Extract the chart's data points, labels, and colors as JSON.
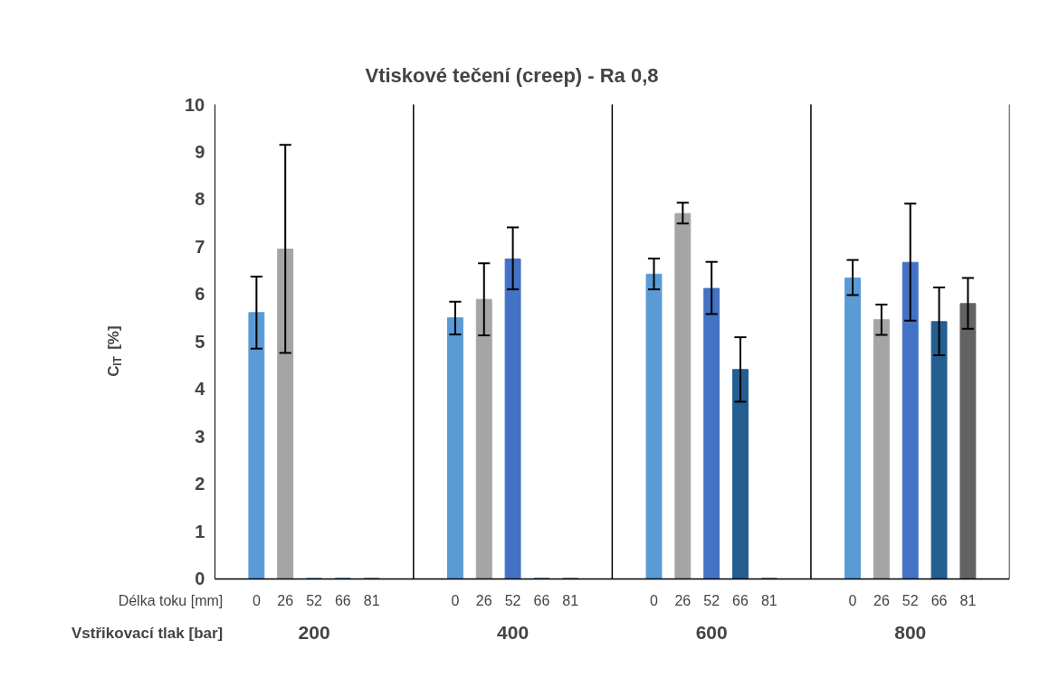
{
  "chart_data": {
    "type": "bar",
    "title": "Vtiskové tečení (creep) - Ra 0,8",
    "ylabel": "C$_{IT}$ [%]",
    "xlabel": "Vstřikovací tlak [bar]",
    "legend_title": "Délka toku [mm]",
    "categories": [
      "200",
      "400",
      "600",
      "800"
    ],
    "series": [
      {
        "name": "0",
        "color": "#5b9bd5",
        "values": [
          5.61,
          5.5,
          6.42,
          6.34
        ],
        "errors": [
          [
            4.85,
            6.37
          ],
          [
            5.15,
            5.84
          ],
          [
            6.1,
            6.75
          ],
          [
            5.98,
            6.72
          ]
        ]
      },
      {
        "name": "26",
        "color": "#a5a5a5",
        "values": [
          6.95,
          5.89,
          7.7,
          5.46
        ],
        "errors": [
          [
            4.76,
            9.15
          ],
          [
            5.13,
            6.65
          ],
          [
            7.49,
            7.93
          ],
          [
            5.14,
            5.78
          ]
        ]
      },
      {
        "name": "52",
        "color": "#4472c4",
        "values": [
          0,
          6.74,
          6.12,
          6.67
        ],
        "errors": [
          null,
          [
            6.1,
            7.41
          ],
          [
            5.58,
            6.68
          ],
          [
            5.44,
            7.91
          ]
        ]
      },
      {
        "name": "66",
        "color": "#255e91",
        "values": [
          0,
          0,
          4.41,
          5.42
        ],
        "errors": [
          null,
          null,
          [
            3.73,
            5.09
          ],
          [
            4.71,
            6.14
          ]
        ]
      },
      {
        "name": "81",
        "color": "#636363",
        "values": [
          0,
          0,
          0,
          5.8
        ],
        "errors": [
          null,
          null,
          null,
          [
            5.27,
            6.34
          ]
        ]
      }
    ],
    "ylim": [
      0,
      10
    ],
    "yticks": [
      0,
      1,
      2,
      3,
      4,
      5,
      6,
      7,
      8,
      9,
      10
    ],
    "grid": "x"
  }
}
